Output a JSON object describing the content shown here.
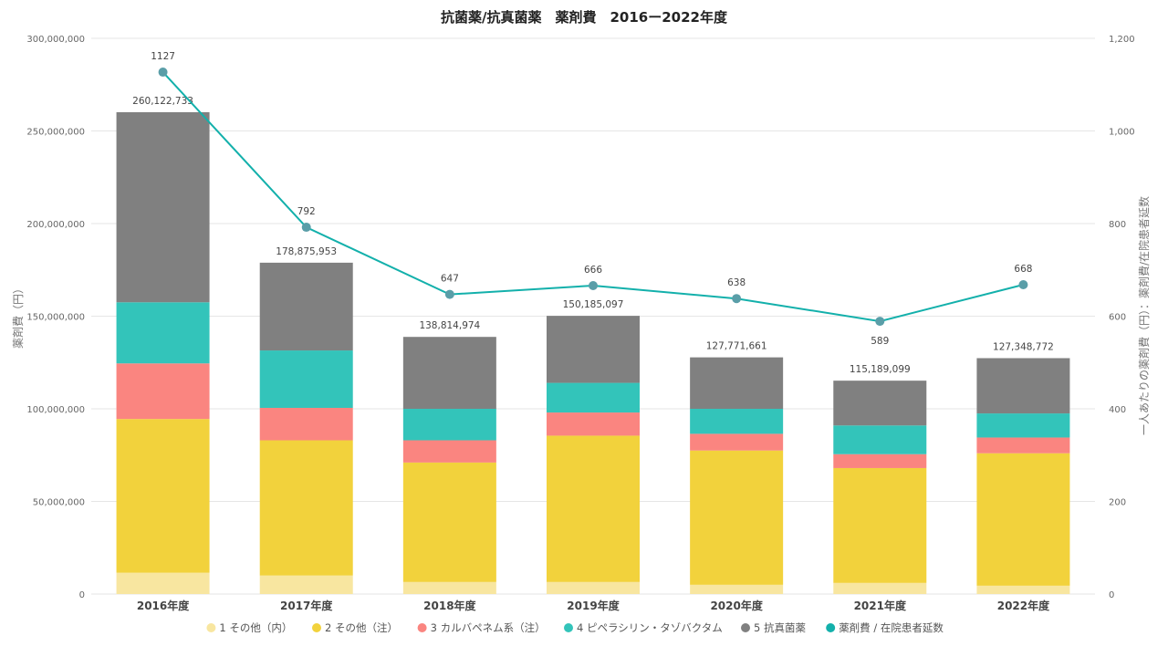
{
  "chart_data": {
    "type": "bar",
    "stacked": true,
    "title": "抗菌薬/抗真菌薬　薬剤費　2016ー2022年度",
    "categories": [
      "2016年度",
      "2017年度",
      "2018年度",
      "2019年度",
      "2020年度",
      "2021年度",
      "2022年度"
    ],
    "series": [
      {
        "name": "1 その他（内）",
        "color": "#F8E6A0",
        "values": [
          11500000,
          10000000,
          6500000,
          6500000,
          5000000,
          6000000,
          4500000
        ]
      },
      {
        "name": "2 その他（注）",
        "color": "#F2D23C",
        "values": [
          83000000,
          73000000,
          64500000,
          79000000,
          72500000,
          62000000,
          71500000
        ]
      },
      {
        "name": "3 カルバペネム系（注）",
        "color": "#FA8580",
        "values": [
          30000000,
          17500000,
          12000000,
          12500000,
          9000000,
          7500000,
          8500000
        ]
      },
      {
        "name": "4 ピペラシリン・タゾバクタム",
        "color": "#33C4BA",
        "values": [
          33000000,
          31000000,
          17000000,
          16000000,
          13500000,
          15500000,
          13000000
        ]
      },
      {
        "name": "5 抗真菌薬",
        "color": "#808080",
        "values": [
          102622733,
          47375953,
          38814974,
          36185097,
          27771661,
          24189099,
          29848772
        ]
      }
    ],
    "totals": [
      260122733,
      178875953,
      138814974,
      150185097,
      127771661,
      115189099,
      127348772
    ],
    "total_labels": [
      "260,122,733",
      "178,875,953",
      "138,814,974",
      "150,185,097",
      "127,771,661",
      "115,189,099",
      "127,348,772"
    ],
    "line": {
      "name": "薬剤費 / 在院患者延数",
      "color": "#13B0AB",
      "values": [
        1127,
        792,
        647,
        666,
        638,
        589,
        668
      ]
    },
    "ylabel": "薬剤費（円）",
    "y2label": "一人あたりの薬剤費（円）：薬剤費/在院患者延数",
    "ylim": [
      0,
      300000000
    ],
    "y2lim": [
      0,
      1200
    ],
    "yticks": [
      "0",
      "50,000,000",
      "100,000,000",
      "150,000,000",
      "200,000,000",
      "250,000,000",
      "300,000,000"
    ],
    "y2ticks": [
      "0",
      "200",
      "400",
      "600",
      "800",
      "1,000",
      "1,200"
    ],
    "legend_position": "bottom",
    "grid": true
  }
}
